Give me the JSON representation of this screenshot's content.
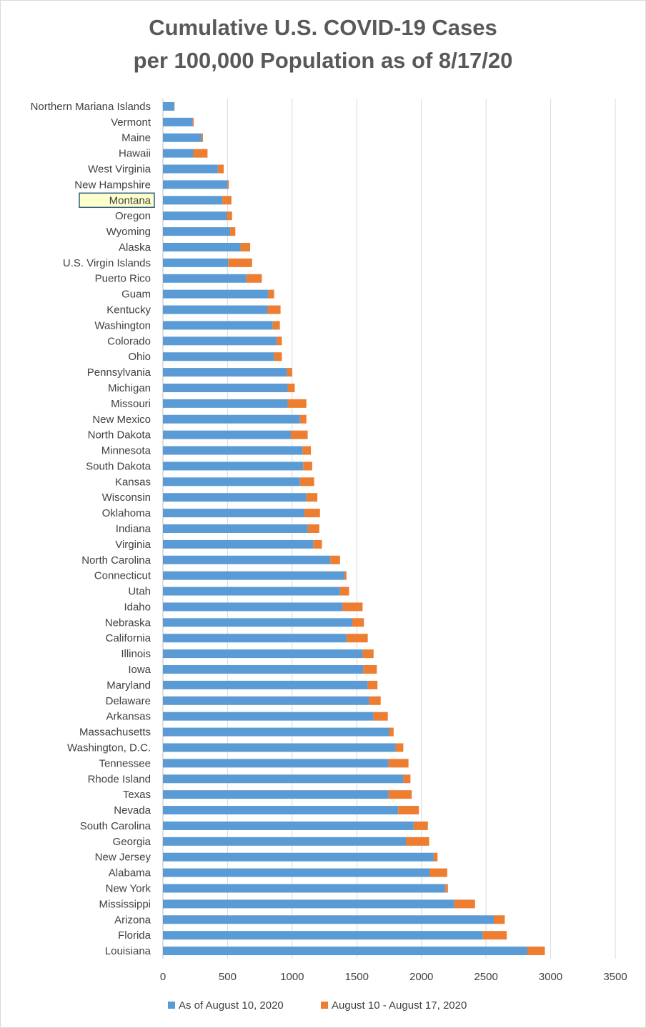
{
  "colors": {
    "series1": "#5b9bd5",
    "series2": "#ed7d31",
    "grid": "#d9d9d9",
    "text": "#404040",
    "highlight_fill": "#ffffcc",
    "highlight_border": "#2f5f7f",
    "highlight_text": "#8a7a00"
  },
  "chart_data": {
    "type": "bar",
    "orientation": "horizontal",
    "stacked": true,
    "title": "Cumulative U.S. COVID-19 Cases",
    "subtitle": "per 100,000 Population as of 8/17/20",
    "xlabel": "",
    "ylabel": "",
    "xlim": [
      0,
      3500
    ],
    "x_ticks": [
      0,
      500,
      1000,
      1500,
      2000,
      2500,
      3000,
      3500
    ],
    "grid": true,
    "legend_position": "bottom",
    "highlighted_category": "Montana",
    "categories": [
      "Northern Mariana Islands",
      "Vermont",
      "Maine",
      "Hawaii",
      "West Virginia",
      "New Hampshire",
      "Montana",
      "Oregon",
      "Wyoming",
      "Alaska",
      "U.S. Virgin Islands",
      "Puerto Rico",
      "Guam",
      "Kentucky",
      "Washington",
      "Colorado",
      "Ohio",
      "Pennsylvania",
      "Michigan",
      "Missouri",
      "New Mexico",
      "North Dakota",
      "Minnesota",
      "South Dakota",
      "Kansas",
      "Wisconsin",
      "Oklahoma",
      "Indiana",
      "Virginia",
      "North Carolina",
      "Connecticut",
      "Utah",
      "Idaho",
      "Nebraska",
      "California",
      "Illinois",
      "Iowa",
      "Maryland",
      "Delaware",
      "Arkansas",
      "Massachusetts",
      "Washington, D.C.",
      "Tennessee",
      "Rhode Island",
      "Texas",
      "Nevada",
      "South Carolina",
      "Georgia",
      "New Jersey",
      "Alabama",
      "New York",
      "Mississippi",
      "Arizona",
      "Florida",
      "Louisiana"
    ],
    "series": [
      {
        "name": "As of August 10, 2020",
        "values": [
          88,
          230,
          300,
          235,
          425,
          500,
          460,
          495,
          520,
          600,
          505,
          645,
          815,
          810,
          850,
          880,
          860,
          960,
          965,
          965,
          1060,
          990,
          1080,
          1085,
          1060,
          1110,
          1095,
          1120,
          1165,
          1295,
          1405,
          1370,
          1390,
          1465,
          1420,
          1545,
          1550,
          1585,
          1595,
          1630,
          1750,
          1800,
          1745,
          1860,
          1745,
          1820,
          1940,
          1880,
          2095,
          2065,
          2185,
          2255,
          2560,
          2475,
          2820
        ]
      },
      {
        "name": "August 10 - August 17, 2020",
        "values": [
          2,
          8,
          10,
          110,
          45,
          10,
          70,
          40,
          40,
          75,
          185,
          120,
          45,
          100,
          55,
          40,
          60,
          40,
          55,
          145,
          50,
          130,
          65,
          70,
          110,
          85,
          120,
          90,
          65,
          75,
          15,
          70,
          155,
          90,
          165,
          85,
          105,
          75,
          90,
          110,
          35,
          60,
          155,
          55,
          180,
          160,
          110,
          180,
          30,
          135,
          20,
          160,
          85,
          185,
          135
        ]
      }
    ]
  }
}
